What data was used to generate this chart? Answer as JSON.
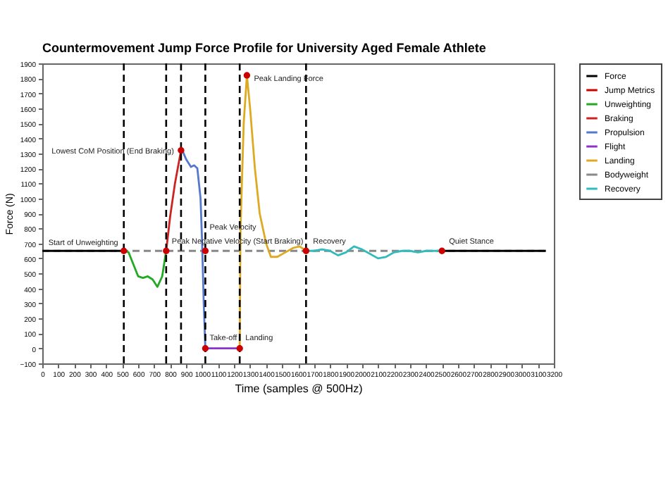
{
  "chart_data": {
    "type": "line",
    "title": "Countermovement Jump Force Profile for University Aged Female Athlete",
    "xlabel": "Time (samples @ 500Hz)",
    "ylabel": "Force (N)",
    "xlim": [
      0,
      3200
    ],
    "xticks": [
      0,
      100,
      200,
      300,
      400,
      500,
      600,
      700,
      800,
      900,
      1000,
      1100,
      1200,
      1300,
      1400,
      1500,
      1600,
      1700,
      1800,
      1900,
      2000,
      2100,
      2200,
      2300,
      2400,
      2500,
      2600,
      2700,
      2800,
      2900,
      3000,
      3100,
      3200
    ],
    "ylim": [
      -100,
      1900
    ],
    "yticks": [
      -100,
      0,
      100,
      200,
      300,
      400,
      500,
      600,
      700,
      800,
      900,
      1000,
      1100,
      1200,
      1300,
      1400,
      1500,
      1600,
      1700,
      1800,
      1900
    ],
    "grid": false,
    "legend": "right",
    "series": [
      {
        "name": "Force",
        "color": "#000000",
        "x": [
          0,
          100,
          200,
          300,
          400,
          510,
          1000,
          2500,
          2600,
          2700,
          2800,
          2900,
          3000,
          3100,
          3150
        ],
        "values": [
          650,
          650,
          650,
          650,
          650,
          650,
          null,
          650,
          650,
          650,
          650,
          650,
          650,
          650,
          650
        ]
      },
      {
        "name": "Jump Metrics",
        "type": "scatter",
        "marker": "circle",
        "color": "#cc0000",
        "x": [
          510,
          775,
          868,
          1020,
          1020,
          1235,
          1280,
          1650,
          2500
        ],
        "values": [
          650,
          650,
          1320,
          650,
          0,
          0,
          1820,
          650,
          650
        ]
      },
      {
        "name": "Unweighting",
        "color": "#22aa22",
        "x": [
          510,
          540,
          570,
          600,
          630,
          660,
          690,
          720,
          750,
          775
        ],
        "values": [
          650,
          640,
          560,
          480,
          470,
          480,
          460,
          410,
          480,
          650
        ]
      },
      {
        "name": "Braking",
        "color": "#cc2222",
        "x": [
          775,
          800,
          830,
          868
        ],
        "values": [
          650,
          880,
          1100,
          1320
        ]
      },
      {
        "name": "Propulsion",
        "color": "#5577cc",
        "x": [
          868,
          880,
          900,
          930,
          950,
          970,
          990,
          1000,
          1010,
          1020
        ],
        "values": [
          1320,
          1310,
          1260,
          1210,
          1220,
          1200,
          1000,
          700,
          300,
          0
        ]
      },
      {
        "name": "Flight",
        "color": "#8833cc",
        "x": [
          1020,
          1100,
          1200,
          1235
        ],
        "values": [
          0,
          0,
          0,
          0
        ]
      },
      {
        "name": "Landing",
        "color": "#ddaa22",
        "x": [
          1235,
          1240,
          1260,
          1280,
          1300,
          1330,
          1360,
          1400,
          1430,
          1470,
          1520,
          1570,
          1610,
          1650
        ],
        "values": [
          0,
          800,
          1500,
          1820,
          1600,
          1200,
          900,
          700,
          610,
          610,
          640,
          670,
          680,
          650
        ]
      },
      {
        "name": "Bodyweight",
        "line_style": "dashed",
        "color": "#888888",
        "x": [
          0,
          3150
        ],
        "values": [
          650,
          650
        ]
      },
      {
        "name": "Recovery",
        "color": "#33bbbb",
        "x": [
          1650,
          1700,
          1750,
          1800,
          1850,
          1900,
          1950,
          2000,
          2050,
          2100,
          2150,
          2200,
          2250,
          2300,
          2350,
          2400,
          2450,
          2500
        ],
        "values": [
          650,
          650,
          660,
          650,
          620,
          640,
          680,
          660,
          630,
          600,
          610,
          640,
          650,
          650,
          640,
          650,
          650,
          650
        ]
      }
    ],
    "ref_lines": [
      {
        "axis": "x",
        "value": 510,
        "color": "#000000",
        "line_style": "dashed"
      },
      {
        "axis": "x",
        "value": 775,
        "color": "#000000",
        "line_style": "dashed"
      },
      {
        "axis": "x",
        "value": 868,
        "color": "#000000",
        "line_style": "dashed"
      },
      {
        "axis": "x",
        "value": 1020,
        "color": "#000000",
        "line_style": "dashed"
      },
      {
        "axis": "x",
        "value": 1235,
        "color": "#000000",
        "line_style": "dashed"
      },
      {
        "axis": "x",
        "value": 1650,
        "color": "#000000",
        "line_style": "dashed"
      }
    ],
    "annotations": [
      {
        "text": "Start of Unweighting",
        "x": 510,
        "y": 650
      },
      {
        "text": "Peak Negative Velocity (Start Braking)",
        "x": 775,
        "y": 650
      },
      {
        "text": "Lowest CoM Position (End Braking)",
        "x": 868,
        "y": 1320
      },
      {
        "text": "Peak Velocity",
        "x": 1020,
        "y": 650
      },
      {
        "text": "Take-off",
        "x": 1020,
        "y": 0
      },
      {
        "text": "Landing",
        "x": 1235,
        "y": 0
      },
      {
        "text": "Peak Landing Force",
        "x": 1280,
        "y": 1820
      },
      {
        "text": "Recovery",
        "x": 1650,
        "y": 650
      },
      {
        "text": "Quiet Stance",
        "x": 2500,
        "y": 650
      }
    ]
  }
}
